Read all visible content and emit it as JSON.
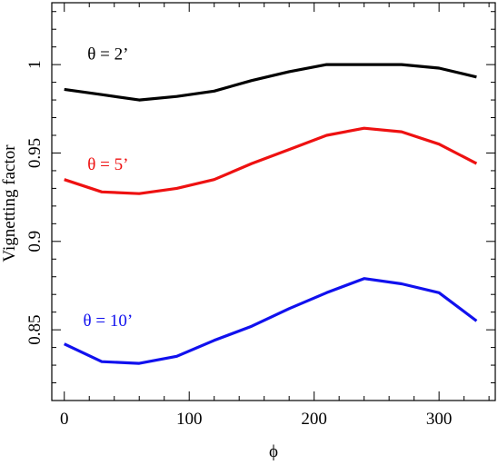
{
  "chart_data": {
    "type": "line",
    "title": "",
    "xlabel": "ϕ",
    "ylabel": "Vignetting factor",
    "xlim": [
      -10,
      345
    ],
    "ylim": [
      0.81,
      1.035
    ],
    "x_ticks": [
      0,
      100,
      200,
      300
    ],
    "x_tick_labels": [
      "0",
      "100",
      "200",
      "300"
    ],
    "y_ticks": [
      0.85,
      0.9,
      0.95,
      1.0
    ],
    "y_tick_labels": [
      "0.85",
      "0.9",
      "0.95",
      "1"
    ],
    "x_minor_step": 20,
    "y_minor_step": 0.01,
    "grid": false,
    "legend": "none",
    "x": [
      0,
      30,
      60,
      90,
      120,
      150,
      180,
      210,
      240,
      270,
      300,
      330
    ],
    "series": [
      {
        "name": "θ = 2’",
        "color": "#000000",
        "label_at": [
          35,
          1.003
        ],
        "values": [
          0.986,
          0.983,
          0.98,
          0.982,
          0.985,
          0.991,
          0.996,
          1.0,
          1.0,
          1.0,
          0.998,
          0.993
        ]
      },
      {
        "name": "θ = 5’",
        "color": "#ee1111",
        "label_at": [
          35,
          0.9405
        ],
        "values": [
          0.935,
          0.928,
          0.927,
          0.93,
          0.935,
          0.944,
          0.952,
          0.96,
          0.964,
          0.962,
          0.955,
          0.944
        ]
      },
      {
        "name": "θ = 10’",
        "color": "#1111ee",
        "label_at": [
          35,
          0.852
        ],
        "values": [
          0.842,
          0.832,
          0.831,
          0.835,
          0.844,
          0.852,
          0.862,
          0.871,
          0.879,
          0.876,
          0.871,
          0.855
        ]
      }
    ]
  }
}
